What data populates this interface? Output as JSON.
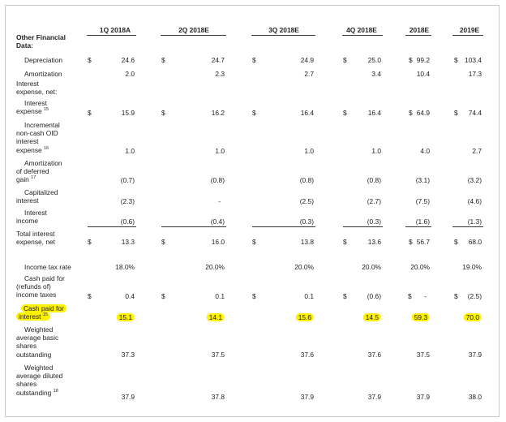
{
  "columns": [
    "1Q 2018A",
    "2Q 2018E",
    "3Q 2018E",
    "4Q 2018E",
    "2018E",
    "2019E"
  ],
  "section": {
    "line1": "Other Financial",
    "line2": "Data:"
  },
  "rows": {
    "depreciation": {
      "label": "Depreciation",
      "dollars": [
        "$",
        "$",
        "$",
        "$",
        "$",
        "$"
      ],
      "values": [
        "24.6",
        "24.7",
        "24.9",
        "25.0",
        "99.2",
        "103.4"
      ]
    },
    "amortization": {
      "label": "Amortization",
      "values": [
        "2.0",
        "2.3",
        "2.7",
        "3.4",
        "10.4",
        "17.3"
      ]
    },
    "ie_header": {
      "lines": [
        "Interest",
        "expense, net:"
      ]
    },
    "interest_expense": {
      "lines": [
        "Interest",
        "expense"
      ],
      "note": "15",
      "dollars": [
        "$",
        "$",
        "$",
        "$",
        "$",
        "$"
      ],
      "values": [
        "15.9",
        "16.2",
        "16.4",
        "16.4",
        "64.9",
        "74.4"
      ]
    },
    "oid": {
      "lines": [
        "Incremental",
        "non-cash OID",
        "interest",
        "expense"
      ],
      "note": "16",
      "values": [
        "1.0",
        "1.0",
        "1.0",
        "1.0",
        "4.0",
        "2.7"
      ]
    },
    "deferred_gain": {
      "lines": [
        "Amortization",
        "of deferred",
        "gain"
      ],
      "note": "17",
      "values": [
        "(0.7)",
        "(0.8)",
        "(0.8)",
        "(0.8)",
        "(3.1)",
        "(3.2)"
      ]
    },
    "cap_interest": {
      "lines": [
        "Capitalized",
        "interest"
      ],
      "values": [
        "(2.3)",
        "-",
        "(2.5)",
        "(2.7)",
        "(7.5)",
        "(4.6)"
      ]
    },
    "interest_income": {
      "lines": [
        "Interest",
        "income"
      ],
      "values": [
        "(0.6)",
        "(0.4)",
        "(0.3)",
        "(0.3)",
        "(1.6)",
        "(1.3)"
      ]
    },
    "total_interest": {
      "lines": [
        "Total interest",
        "expense, net"
      ],
      "dollars": [
        "$",
        "$",
        "$",
        "$",
        "$",
        "$"
      ],
      "values": [
        "13.3",
        "16.0",
        "13.8",
        "13.6",
        "56.7",
        "68.0"
      ]
    },
    "tax_rate": {
      "label": "Income tax rate",
      "values": [
        "18.0%",
        "20.0%",
        "20.0%",
        "20.0%",
        "20.0%",
        "19.0%"
      ]
    },
    "cash_taxes": {
      "lines": [
        "Cash paid for",
        "(refunds of)",
        "income taxes"
      ],
      "dollars": [
        "$",
        "$",
        "$",
        "$",
        "$",
        "$"
      ],
      "values": [
        "0.4",
        "0.1",
        "0.1",
        "(0.6)",
        "-",
        "(2.5)"
      ]
    },
    "cash_interest": {
      "lines": [
        "Cash paid for",
        "interest"
      ],
      "note": "15",
      "values": [
        "15.1",
        "14.1",
        "15.6",
        "14.5",
        "59.3",
        "70.0"
      ]
    },
    "basic_shares": {
      "lines": [
        "Weighted",
        "average basic",
        "shares",
        "outstanding"
      ],
      "values": [
        "37.3",
        "37.5",
        "37.6",
        "37.6",
        "37.5",
        "37.9"
      ]
    },
    "diluted_shares": {
      "lines": [
        "Weighted",
        "average diluted",
        "shares",
        "outstanding"
      ],
      "note": "18",
      "values": [
        "37.9",
        "37.8",
        "37.9",
        "37.9",
        "37.9",
        "38.0"
      ]
    }
  },
  "colors": {
    "highlight": "#fff200",
    "rule": "#333333",
    "border": "#c8c8c8"
  }
}
